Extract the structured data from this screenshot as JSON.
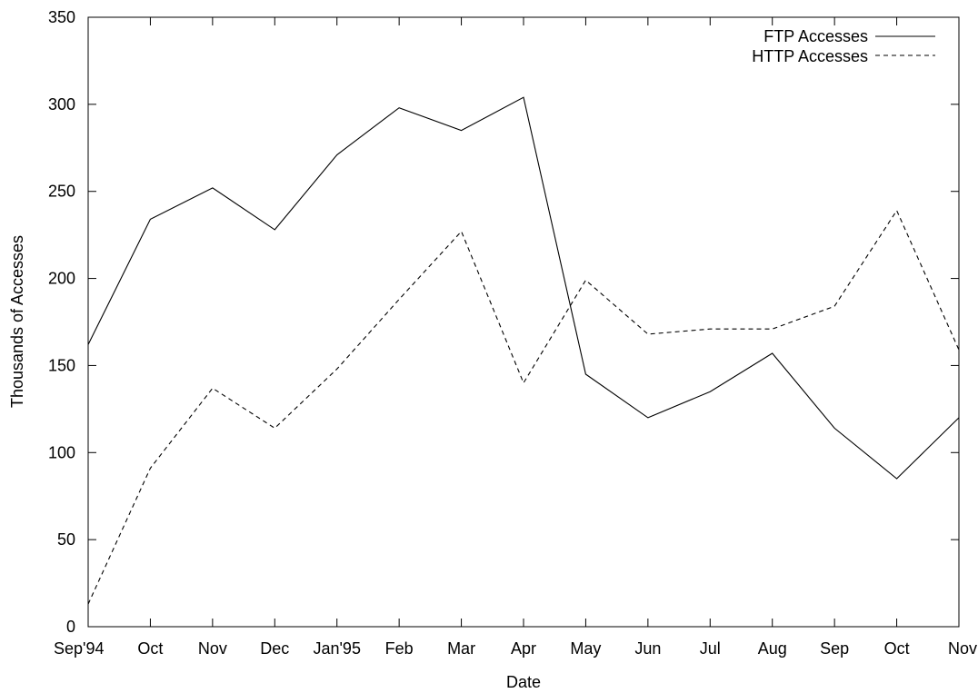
{
  "chart_data": {
    "type": "line",
    "title": "",
    "xlabel": "Date",
    "ylabel": "Thousands of Accesses",
    "categories": [
      "Sep'94",
      "Oct",
      "Nov",
      "Dec",
      "Jan'95",
      "Feb",
      "Mar",
      "Apr",
      "May",
      "Jun",
      "Jul",
      "Aug",
      "Sep",
      "Oct",
      "Nov"
    ],
    "ylim": [
      0,
      350
    ],
    "yticks": [
      "0",
      "50",
      "100",
      "150",
      "200",
      "250",
      "300",
      "350"
    ],
    "grid": false,
    "legend_position": "top-right",
    "series": [
      {
        "name": "FTP Accesses",
        "style": "solid",
        "color": "#000000",
        "values": [
          162,
          234,
          252,
          228,
          271,
          298,
          285,
          304,
          145,
          120,
          135,
          157,
          114,
          85,
          120
        ]
      },
      {
        "name": "HTTP Accesses",
        "style": "dashed",
        "color": "#000000",
        "values": [
          13,
          91,
          137,
          114,
          148,
          188,
          227,
          140,
          199,
          168,
          171,
          171,
          184,
          239,
          159
        ]
      }
    ]
  }
}
